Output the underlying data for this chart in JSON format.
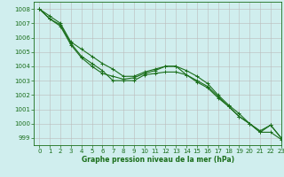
{
  "background_color": "#d0eeee",
  "grid_color": "#bbbbbb",
  "line_color": "#1a6e1a",
  "marker_color": "#1a6e1a",
  "xlabel": "Graphe pression niveau de la mer (hPa)",
  "xlabel_color": "#1a6e1a",
  "tick_color": "#1a6e1a",
  "ylim": [
    998.5,
    1008.5
  ],
  "xlim": [
    -0.5,
    23
  ],
  "yticks": [
    999,
    1000,
    1001,
    1002,
    1003,
    1004,
    1005,
    1006,
    1007,
    1008
  ],
  "xticks": [
    0,
    1,
    2,
    3,
    4,
    5,
    6,
    7,
    8,
    9,
    10,
    11,
    12,
    13,
    14,
    15,
    16,
    17,
    18,
    19,
    20,
    21,
    22,
    23
  ],
  "line1": [
    1008.0,
    1007.5,
    1007.0,
    1005.7,
    1005.2,
    1004.7,
    1004.2,
    1003.8,
    1003.3,
    1003.3,
    1003.6,
    1003.8,
    1004.0,
    1004.0,
    1003.7,
    1003.3,
    1002.8,
    1002.0,
    1001.3,
    1000.7,
    1000.0,
    999.4,
    999.9,
    999.0
  ],
  "line2": [
    1008.0,
    1007.3,
    1006.9,
    1005.6,
    1004.7,
    1004.2,
    1003.7,
    1003.0,
    1003.0,
    1003.0,
    1003.4,
    1003.5,
    1003.6,
    1003.6,
    1003.4,
    1003.0,
    1002.6,
    1001.9,
    1001.2,
    1000.5,
    1000.0,
    999.4,
    999.4,
    998.9
  ],
  "line3": [
    1008.0,
    1007.3,
    1006.8,
    1005.5,
    1004.6,
    1004.0,
    1003.5,
    1003.3,
    1003.1,
    1003.2,
    1003.5,
    1003.7,
    1004.0,
    1004.0,
    1003.4,
    1002.9,
    1002.5,
    1001.8,
    1001.2,
    1000.5,
    1000.0,
    999.5,
    999.9,
    999.0
  ],
  "label_fontsize": 5.0,
  "xlabel_fontsize": 5.5,
  "linewidth": 0.8,
  "markersize": 2.5
}
